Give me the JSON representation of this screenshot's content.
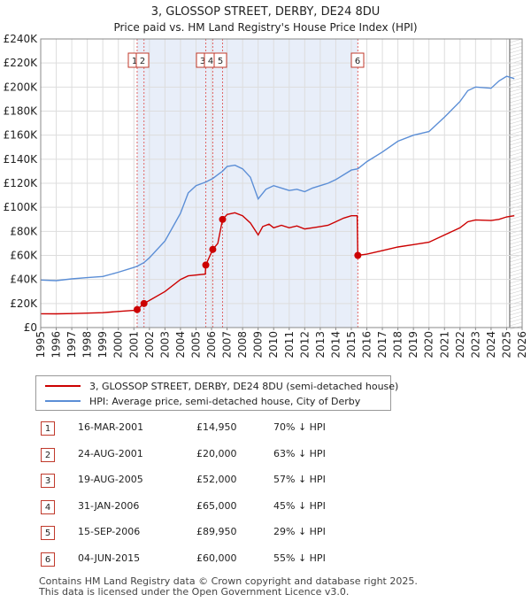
{
  "chart_data": {
    "type": "line",
    "title": "3, GLOSSOP STREET, DERBY, DE24 8DU",
    "subtitle": "Price paid vs. HM Land Registry's House Price Index (HPI)",
    "xlim": [
      1995,
      2026
    ],
    "ylim": [
      0,
      240000
    ],
    "x_ticks": [
      "1995",
      "1996",
      "1997",
      "1998",
      "1999",
      "2000",
      "2001",
      "2002",
      "2003",
      "2004",
      "2005",
      "2006",
      "2007",
      "2008",
      "2009",
      "2010",
      "2011",
      "2012",
      "2013",
      "2014",
      "2015",
      "2016",
      "2017",
      "2018",
      "2019",
      "2020",
      "2021",
      "2022",
      "2023",
      "2024",
      "2025",
      "2026"
    ],
    "y_ticks": [
      {
        "value": 0,
        "label": "£0"
      },
      {
        "value": 20000,
        "label": "£20K"
      },
      {
        "value": 40000,
        "label": "£40K"
      },
      {
        "value": 60000,
        "label": "£60K"
      },
      {
        "value": 80000,
        "label": "£80K"
      },
      {
        "value": 100000,
        "label": "£100K"
      },
      {
        "value": 120000,
        "label": "£120K"
      },
      {
        "value": 140000,
        "label": "£140K"
      },
      {
        "value": 160000,
        "label": "£160K"
      },
      {
        "value": 180000,
        "label": "£180K"
      },
      {
        "value": 200000,
        "label": "£200K"
      },
      {
        "value": 220000,
        "label": "£220K"
      },
      {
        "value": 240000,
        "label": "£240K"
      }
    ],
    "shaded_ranges": [
      [
        2001.21,
        2015.42
      ]
    ],
    "forecast_start": 2025.2,
    "series": [
      {
        "name": "3, GLOSSOP STREET, DERBY, DE24 8DU (semi-detached house)",
        "color": "#cc0000",
        "points": [
          [
            1995,
            11500
          ],
          [
            1996,
            11400
          ],
          [
            1997,
            11600
          ],
          [
            1998,
            12000
          ],
          [
            1999,
            12400
          ],
          [
            2000,
            13400
          ],
          [
            2001.0,
            14300
          ],
          [
            2001.21,
            14950
          ],
          [
            2001.65,
            20000
          ],
          [
            2002,
            22500
          ],
          [
            2003,
            30000
          ],
          [
            2004,
            40000
          ],
          [
            2004.5,
            43000
          ],
          [
            2005.6,
            44500
          ],
          [
            2005.63,
            52000
          ],
          [
            2006.08,
            65000
          ],
          [
            2006.4,
            70000
          ],
          [
            2006.71,
            89950
          ],
          [
            2007,
            94000
          ],
          [
            2007.5,
            95500
          ],
          [
            2008,
            93000
          ],
          [
            2008.5,
            87000
          ],
          [
            2009,
            77000
          ],
          [
            2009.3,
            84000
          ],
          [
            2009.7,
            86000
          ],
          [
            2010,
            83000
          ],
          [
            2010.5,
            85000
          ],
          [
            2011,
            83000
          ],
          [
            2011.5,
            84500
          ],
          [
            2012,
            82000
          ],
          [
            2012.5,
            83000
          ],
          [
            2013,
            84000
          ],
          [
            2013.5,
            85000
          ],
          [
            2014,
            88000
          ],
          [
            2014.5,
            91000
          ],
          [
            2015,
            93000
          ],
          [
            2015.38,
            93000
          ],
          [
            2015.42,
            60000
          ],
          [
            2016,
            61000
          ],
          [
            2017,
            64000
          ],
          [
            2018,
            67000
          ],
          [
            2019,
            69000
          ],
          [
            2020,
            71000
          ],
          [
            2021,
            77000
          ],
          [
            2022,
            83000
          ],
          [
            2022.5,
            88000
          ],
          [
            2023,
            89500
          ],
          [
            2024,
            89000
          ],
          [
            2024.5,
            90000
          ],
          [
            2025,
            92000
          ],
          [
            2025.5,
            93000
          ]
        ]
      },
      {
        "name": "HPI: Average price, semi-detached house, City of Derby",
        "color": "#5b8ed6",
        "points": [
          [
            1995,
            39500
          ],
          [
            1996,
            39000
          ],
          [
            1997,
            40500
          ],
          [
            1998,
            41500
          ],
          [
            1999,
            42500
          ],
          [
            2000,
            46000
          ],
          [
            2001,
            50000
          ],
          [
            2001.21,
            51000
          ],
          [
            2001.65,
            54000
          ],
          [
            2002,
            58000
          ],
          [
            2003,
            72000
          ],
          [
            2004,
            95000
          ],
          [
            2004.5,
            112000
          ],
          [
            2005,
            118000
          ],
          [
            2005.63,
            121000
          ],
          [
            2006.08,
            124000
          ],
          [
            2006.5,
            128000
          ],
          [
            2006.71,
            130000
          ],
          [
            2007,
            134000
          ],
          [
            2007.5,
            135000
          ],
          [
            2008,
            132000
          ],
          [
            2008.5,
            125000
          ],
          [
            2009,
            107000
          ],
          [
            2009.5,
            115000
          ],
          [
            2010,
            118000
          ],
          [
            2010.5,
            116000
          ],
          [
            2011,
            114000
          ],
          [
            2011.5,
            115000
          ],
          [
            2012,
            113000
          ],
          [
            2012.5,
            116000
          ],
          [
            2013,
            118000
          ],
          [
            2013.5,
            120000
          ],
          [
            2014,
            123000
          ],
          [
            2014.5,
            127000
          ],
          [
            2015,
            131000
          ],
          [
            2015.42,
            132000
          ],
          [
            2016,
            138000
          ],
          [
            2017,
            146000
          ],
          [
            2018,
            155000
          ],
          [
            2019,
            160000
          ],
          [
            2020,
            163000
          ],
          [
            2021,
            175000
          ],
          [
            2022,
            188000
          ],
          [
            2022.5,
            197000
          ],
          [
            2023,
            200000
          ],
          [
            2024,
            199000
          ],
          [
            2024.5,
            205000
          ],
          [
            2025,
            209000
          ],
          [
            2025.5,
            207000
          ]
        ]
      }
    ],
    "transactions": [
      {
        "num": "1",
        "x": 2001.21,
        "price": 14950
      },
      {
        "num": "2",
        "x": 2001.65,
        "price": 20000
      },
      {
        "num": "3",
        "x": 2005.63,
        "price": 52000
      },
      {
        "num": "4",
        "x": 2006.08,
        "price": 65000
      },
      {
        "num": "5",
        "x": 2006.71,
        "price": 89950
      },
      {
        "num": "6",
        "x": 2015.42,
        "price": 60000
      }
    ]
  },
  "legend": {
    "property_label": "3, GLOSSOP STREET, DERBY, DE24 8DU (semi-detached house)",
    "hpi_label": "HPI: Average price, semi-detached house, City of Derby",
    "property_color": "#cc0000",
    "hpi_color": "#5b8ed6"
  },
  "table": [
    {
      "num": "1",
      "date": "16-MAR-2001",
      "price": "£14,950",
      "hpi": "70% ↓ HPI"
    },
    {
      "num": "2",
      "date": "24-AUG-2001",
      "price": "£20,000",
      "hpi": "63% ↓ HPI"
    },
    {
      "num": "3",
      "date": "19-AUG-2005",
      "price": "£52,000",
      "hpi": "57% ↓ HPI"
    },
    {
      "num": "4",
      "date": "31-JAN-2006",
      "price": "£65,000",
      "hpi": "45% ↓ HPI"
    },
    {
      "num": "5",
      "date": "15-SEP-2006",
      "price": "£89,950",
      "hpi": "29% ↓ HPI"
    },
    {
      "num": "6",
      "date": "04-JUN-2015",
      "price": "£60,000",
      "hpi": "55% ↓ HPI"
    }
  ],
  "footer": {
    "line1": "Contains HM Land Registry data © Crown copyright and database right 2025.",
    "line2": "This data is licensed under the Open Government Licence v3.0."
  }
}
